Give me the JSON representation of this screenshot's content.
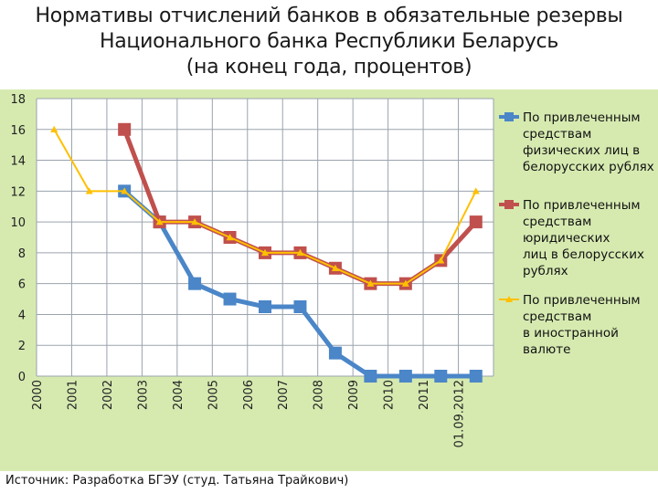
{
  "header": {
    "title_line1": "Нормативы отчислений банков в обязательные резервы",
    "title_line2": "Национального банка Республики Беларусь",
    "title_line3": "(на конец года, процентов)"
  },
  "footer": {
    "source": "Источник: Разработка БГЭУ (студ. Татьяна Трайкович)"
  },
  "colors": {
    "panel_bg": "#d6eab0",
    "plot_bg": "#ffffff",
    "grid": "#9aa3ad",
    "series1": "#4a86c8",
    "series2": "#c0504d",
    "series3": "#ffc000"
  },
  "chart_data": {
    "type": "line",
    "title": "",
    "xlabel": "",
    "ylabel": "",
    "ylim": [
      0,
      18
    ],
    "yticks": [
      0,
      2,
      4,
      6,
      8,
      10,
      12,
      14,
      16,
      18
    ],
    "grid": true,
    "legend_position": "right",
    "categories": [
      "2000",
      "2001",
      "2002",
      "2003",
      "2004",
      "2005",
      "2006",
      "2007",
      "2008",
      "2009",
      "2010",
      "2011",
      "01.09.2012"
    ],
    "series": [
      {
        "name": "По привлеченным средствам физических лиц в белорусских рублях",
        "legend_lines": [
          "По привлеченным",
          "средствам",
          "физических лиц в",
          "белорусских рублях"
        ],
        "color": "#4a86c8",
        "marker": "square",
        "values": [
          null,
          null,
          12,
          10,
          6,
          5,
          4.5,
          4.5,
          1.5,
          0,
          0,
          0,
          0
        ]
      },
      {
        "name": "По привлеченным средствам юридических лиц в белорусских рублях",
        "legend_lines": [
          "По привлеченным",
          "средствам",
          "юридических",
          "лиц в белорусских",
          "рублях"
        ],
        "color": "#c0504d",
        "marker": "square",
        "values": [
          null,
          null,
          16,
          10,
          10,
          9,
          8,
          8,
          7,
          6,
          6,
          7.5,
          10
        ]
      },
      {
        "name": "По привлеченным средствам в иностранной валюте",
        "legend_lines": [
          "По привлеченным",
          "средствам",
          "в иностранной",
          "валюте"
        ],
        "color": "#ffc000",
        "marker": "triangle",
        "values": [
          16,
          12,
          12,
          10,
          10,
          9,
          8,
          8,
          7,
          6,
          6,
          7.5,
          12
        ]
      }
    ]
  }
}
